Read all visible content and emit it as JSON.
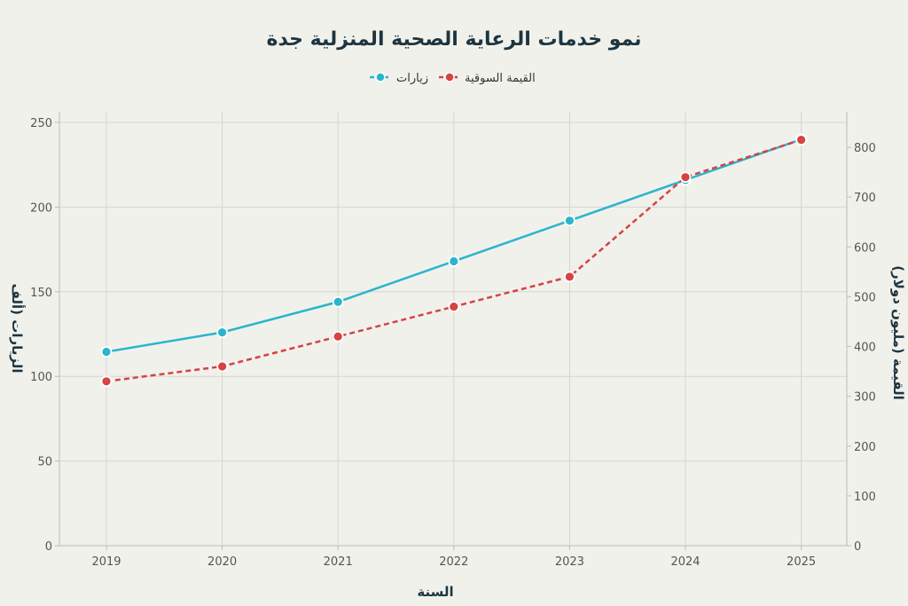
{
  "chart_data": {
    "type": "line",
    "title": "نمو خدمات الرعاية الصحية المنزلية جدة",
    "xlabel": "السنة",
    "ylabel_left": "الزيارات (ألف",
    "ylabel_right": "القيمة (مليون دولار)",
    "categories": [
      "2019",
      "2020",
      "2021",
      "2022",
      "2023",
      "2024",
      "2025"
    ],
    "y_left": {
      "range": [
        0,
        250
      ],
      "ticks": [
        "0",
        "50",
        "100",
        "150",
        "200",
        "250"
      ]
    },
    "y_right": {
      "range": [
        0,
        850
      ],
      "ticks": [
        "0",
        "100",
        "200",
        "300",
        "400",
        "500",
        "600",
        "700",
        "800"
      ]
    },
    "grid": true,
    "legend_position": "top-center",
    "series": [
      {
        "name": "زيارات",
        "axis": "left",
        "style": "solid",
        "color": "#2bb5cc",
        "values": [
          114.5,
          126,
          144,
          168,
          192,
          216,
          240
        ]
      },
      {
        "name": "القيمة السوقية",
        "axis": "right",
        "style": "dashed",
        "color": "#d54343",
        "values": [
          330,
          360,
          420,
          480,
          540,
          740,
          815
        ]
      }
    ]
  }
}
